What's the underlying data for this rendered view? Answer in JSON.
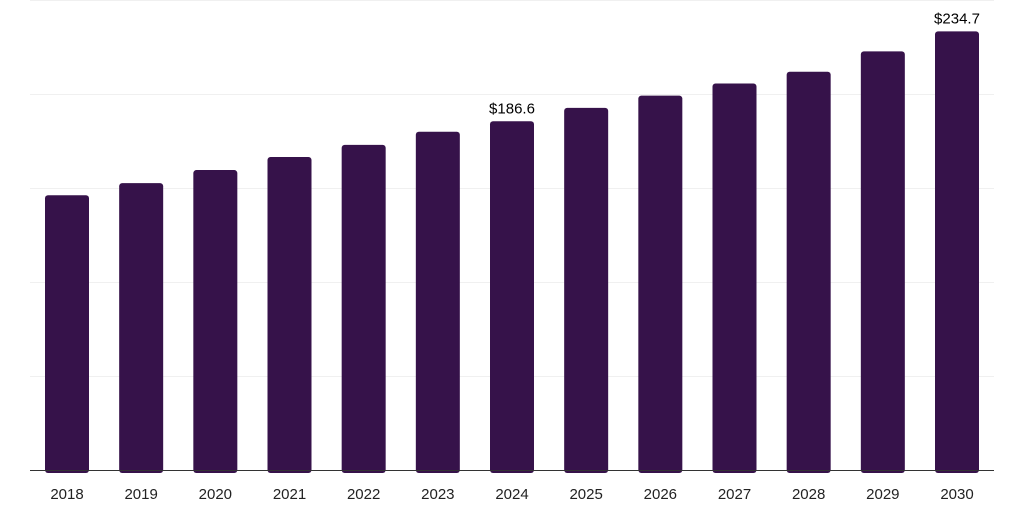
{
  "chart_data": {
    "type": "bar",
    "title": "",
    "xlabel": "",
    "ylabel": "",
    "categories": [
      "2018",
      "2019",
      "2020",
      "2021",
      "2022",
      "2023",
      "2024",
      "2025",
      "2026",
      "2027",
      "2028",
      "2029",
      "2030"
    ],
    "series": [
      {
        "values": [
          147.0,
          153.5,
          160.5,
          167.5,
          174.0,
          181.0,
          186.6,
          193.8,
          200.3,
          206.8,
          213.1,
          224.0,
          234.7
        ]
      }
    ],
    "data_labels": [
      {
        "category": "2024",
        "text": "$186.6"
      },
      {
        "category": "2030",
        "text": "$234.7"
      }
    ],
    "ylim": [
      0,
      251.5
    ],
    "y_gridlines": [
      50.3,
      100.6,
      150.9,
      201.2,
      251.5
    ],
    "grid": true,
    "legend": "none",
    "bar_color": "#36124a"
  }
}
